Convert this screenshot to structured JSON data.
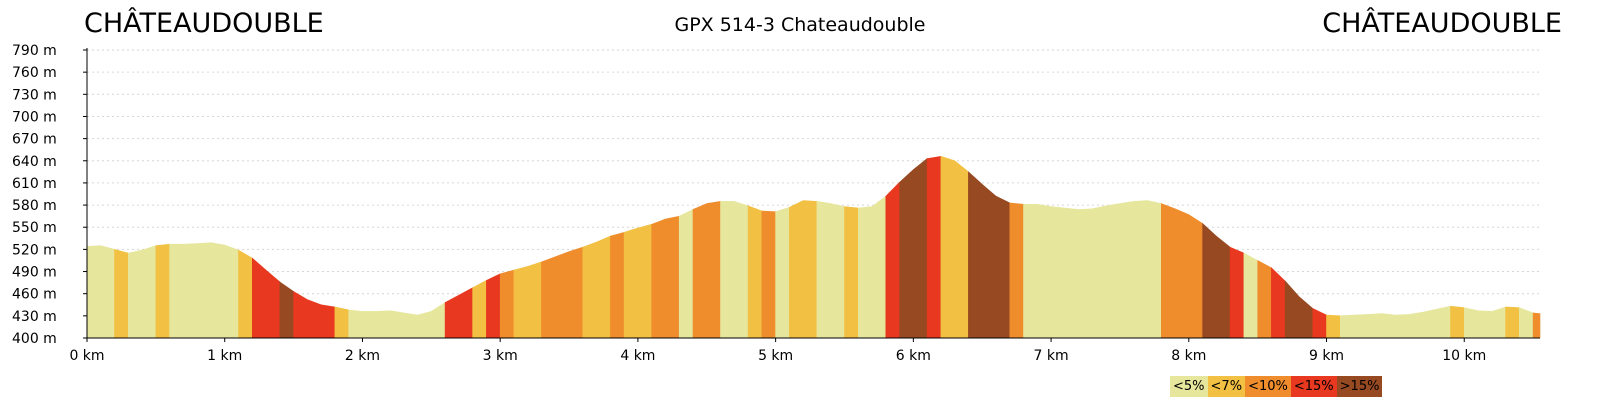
{
  "chart_data": {
    "type": "area",
    "title": "GPX 514-3 Chateaudouble",
    "start_label": "CHÂTEAUDOUBLE",
    "end_label": "CHÂTEAUDOUBLE",
    "xlabel": "",
    "ylabel": "",
    "xlim": [
      0,
      10.55
    ],
    "ylim": [
      400,
      790
    ],
    "x_ticks": [
      {
        "value": 0,
        "label": "0 km"
      },
      {
        "value": 1,
        "label": "1 km"
      },
      {
        "value": 2,
        "label": "2 km"
      },
      {
        "value": 3,
        "label": "3 km"
      },
      {
        "value": 4,
        "label": "4 km"
      },
      {
        "value": 5,
        "label": "5 km"
      },
      {
        "value": 6,
        "label": "6 km"
      },
      {
        "value": 7,
        "label": "7 km"
      },
      {
        "value": 8,
        "label": "8 km"
      },
      {
        "value": 9,
        "label": "9 km"
      },
      {
        "value": 10,
        "label": "10 km"
      }
    ],
    "y_ticks": [
      {
        "value": 400,
        "label": "400 m"
      },
      {
        "value": 430,
        "label": "430 m"
      },
      {
        "value": 460,
        "label": "460 m"
      },
      {
        "value": 490,
        "label": "490 m"
      },
      {
        "value": 520,
        "label": "520 m"
      },
      {
        "value": 550,
        "label": "550 m"
      },
      {
        "value": 580,
        "label": "580 m"
      },
      {
        "value": 610,
        "label": "610 m"
      },
      {
        "value": 640,
        "label": "640 m"
      },
      {
        "value": 670,
        "label": "670 m"
      },
      {
        "value": 700,
        "label": "700 m"
      },
      {
        "value": 730,
        "label": "730 m"
      },
      {
        "value": 760,
        "label": "760 m"
      },
      {
        "value": 790,
        "label": "790 m"
      }
    ],
    "grid": {
      "horizontal": true,
      "vertical": false,
      "style": "dotted"
    },
    "profile": [
      [
        0.0,
        524
      ],
      [
        0.1,
        525
      ],
      [
        0.2,
        520
      ],
      [
        0.3,
        515
      ],
      [
        0.4,
        519
      ],
      [
        0.5,
        525
      ],
      [
        0.6,
        527
      ],
      [
        0.7,
        527
      ],
      [
        0.8,
        528
      ],
      [
        0.9,
        529
      ],
      [
        1.0,
        526
      ],
      [
        1.1,
        519
      ],
      [
        1.2,
        508
      ],
      [
        1.3,
        492
      ],
      [
        1.4,
        476
      ],
      [
        1.5,
        463
      ],
      [
        1.6,
        452
      ],
      [
        1.7,
        445
      ],
      [
        1.8,
        442
      ],
      [
        1.9,
        438
      ],
      [
        2.0,
        436
      ],
      [
        2.1,
        436
      ],
      [
        2.2,
        437
      ],
      [
        2.3,
        434
      ],
      [
        2.4,
        431
      ],
      [
        2.5,
        436
      ],
      [
        2.6,
        448
      ],
      [
        2.7,
        458
      ],
      [
        2.8,
        468
      ],
      [
        2.9,
        478
      ],
      [
        3.0,
        487
      ],
      [
        3.1,
        492
      ],
      [
        3.2,
        497
      ],
      [
        3.3,
        503
      ],
      [
        3.4,
        510
      ],
      [
        3.5,
        517
      ],
      [
        3.6,
        523
      ],
      [
        3.7,
        530
      ],
      [
        3.8,
        538
      ],
      [
        3.9,
        543
      ],
      [
        4.0,
        549
      ],
      [
        4.1,
        554
      ],
      [
        4.2,
        561
      ],
      [
        4.3,
        565
      ],
      [
        4.4,
        574
      ],
      [
        4.5,
        582
      ],
      [
        4.6,
        585
      ],
      [
        4.7,
        585
      ],
      [
        4.8,
        579
      ],
      [
        4.9,
        572
      ],
      [
        5.0,
        571
      ],
      [
        5.1,
        577
      ],
      [
        5.2,
        586
      ],
      [
        5.3,
        585
      ],
      [
        5.4,
        582
      ],
      [
        5.5,
        578
      ],
      [
        5.6,
        576
      ],
      [
        5.7,
        578
      ],
      [
        5.8,
        592
      ],
      [
        5.9,
        611
      ],
      [
        6.0,
        628
      ],
      [
        6.1,
        643
      ],
      [
        6.2,
        646
      ],
      [
        6.3,
        640
      ],
      [
        6.4,
        625
      ],
      [
        6.5,
        608
      ],
      [
        6.6,
        592
      ],
      [
        6.7,
        583
      ],
      [
        6.8,
        581
      ],
      [
        6.9,
        581
      ],
      [
        7.0,
        578
      ],
      [
        7.1,
        576
      ],
      [
        7.2,
        574
      ],
      [
        7.3,
        575
      ],
      [
        7.4,
        579
      ],
      [
        7.5,
        582
      ],
      [
        7.6,
        585
      ],
      [
        7.7,
        586
      ],
      [
        7.8,
        582
      ],
      [
        7.9,
        575
      ],
      [
        8.0,
        567
      ],
      [
        8.1,
        555
      ],
      [
        8.2,
        538
      ],
      [
        8.3,
        523
      ],
      [
        8.4,
        515
      ],
      [
        8.5,
        505
      ],
      [
        8.6,
        495
      ],
      [
        8.7,
        477
      ],
      [
        8.8,
        456
      ],
      [
        8.9,
        440
      ],
      [
        9.0,
        431
      ],
      [
        9.1,
        430
      ],
      [
        9.2,
        431
      ],
      [
        9.3,
        432
      ],
      [
        9.4,
        433
      ],
      [
        9.5,
        431
      ],
      [
        9.6,
        432
      ],
      [
        9.7,
        435
      ],
      [
        9.8,
        439
      ],
      [
        9.9,
        443
      ],
      [
        10.0,
        441
      ],
      [
        10.1,
        437
      ],
      [
        10.2,
        436
      ],
      [
        10.3,
        442
      ],
      [
        10.4,
        441
      ],
      [
        10.5,
        434
      ],
      [
        10.55,
        433
      ]
    ],
    "segments": [
      {
        "from": 0.0,
        "to": 0.2,
        "band": 0
      },
      {
        "from": 0.2,
        "to": 0.3,
        "band": 1
      },
      {
        "from": 0.3,
        "to": 0.5,
        "band": 0
      },
      {
        "from": 0.5,
        "to": 0.6,
        "band": 1
      },
      {
        "from": 0.6,
        "to": 1.1,
        "band": 0
      },
      {
        "from": 1.1,
        "to": 1.2,
        "band": 1
      },
      {
        "from": 1.2,
        "to": 1.4,
        "band": 3
      },
      {
        "from": 1.4,
        "to": 1.5,
        "band": 4
      },
      {
        "from": 1.5,
        "to": 1.8,
        "band": 3
      },
      {
        "from": 1.8,
        "to": 1.9,
        "band": 1
      },
      {
        "from": 1.9,
        "to": 2.6,
        "band": 0
      },
      {
        "from": 2.6,
        "to": 2.8,
        "band": 3
      },
      {
        "from": 2.8,
        "to": 2.9,
        "band": 1
      },
      {
        "from": 2.9,
        "to": 3.0,
        "band": 3
      },
      {
        "from": 3.0,
        "to": 3.1,
        "band": 2
      },
      {
        "from": 3.1,
        "to": 3.3,
        "band": 1
      },
      {
        "from": 3.3,
        "to": 3.6,
        "band": 2
      },
      {
        "from": 3.6,
        "to": 3.8,
        "band": 1
      },
      {
        "from": 3.8,
        "to": 3.9,
        "band": 2
      },
      {
        "from": 3.9,
        "to": 4.1,
        "band": 1
      },
      {
        "from": 4.1,
        "to": 4.3,
        "band": 2
      },
      {
        "from": 4.3,
        "to": 4.4,
        "band": 0
      },
      {
        "from": 4.4,
        "to": 4.6,
        "band": 2
      },
      {
        "from": 4.6,
        "to": 4.8,
        "band": 0
      },
      {
        "from": 4.8,
        "to": 4.9,
        "band": 1
      },
      {
        "from": 4.9,
        "to": 5.0,
        "band": 2
      },
      {
        "from": 5.0,
        "to": 5.1,
        "band": 0
      },
      {
        "from": 5.1,
        "to": 5.3,
        "band": 1
      },
      {
        "from": 5.3,
        "to": 5.5,
        "band": 0
      },
      {
        "from": 5.5,
        "to": 5.6,
        "band": 1
      },
      {
        "from": 5.6,
        "to": 5.8,
        "band": 0
      },
      {
        "from": 5.8,
        "to": 5.9,
        "band": 3
      },
      {
        "from": 5.9,
        "to": 6.1,
        "band": 4
      },
      {
        "from": 6.1,
        "to": 6.2,
        "band": 3
      },
      {
        "from": 6.2,
        "to": 6.4,
        "band": 1
      },
      {
        "from": 6.4,
        "to": 6.7,
        "band": 4
      },
      {
        "from": 6.7,
        "to": 6.8,
        "band": 2
      },
      {
        "from": 6.8,
        "to": 7.8,
        "band": 0
      },
      {
        "from": 7.8,
        "to": 8.1,
        "band": 2
      },
      {
        "from": 8.1,
        "to": 8.3,
        "band": 4
      },
      {
        "from": 8.3,
        "to": 8.4,
        "band": 3
      },
      {
        "from": 8.4,
        "to": 8.5,
        "band": 0
      },
      {
        "from": 8.5,
        "to": 8.6,
        "band": 2
      },
      {
        "from": 8.6,
        "to": 8.7,
        "band": 3
      },
      {
        "from": 8.7,
        "to": 8.9,
        "band": 4
      },
      {
        "from": 8.9,
        "to": 9.0,
        "band": 3
      },
      {
        "from": 9.0,
        "to": 9.1,
        "band": 1
      },
      {
        "from": 9.1,
        "to": 9.9,
        "band": 0
      },
      {
        "from": 9.9,
        "to": 10.0,
        "band": 1
      },
      {
        "from": 10.0,
        "to": 10.3,
        "band": 0
      },
      {
        "from": 10.3,
        "to": 10.4,
        "band": 1
      },
      {
        "from": 10.4,
        "to": 10.5,
        "band": 0
      },
      {
        "from": 10.5,
        "to": 10.55,
        "band": 2
      }
    ],
    "legend": {
      "placement": "bottom-right",
      "items": [
        {
          "label": "<5%",
          "color": "#e6e69c"
        },
        {
          "label": "<7%",
          "color": "#f2c042"
        },
        {
          "label": "<10%",
          "color": "#ef8c2c"
        },
        {
          "label": "<15%",
          "color": "#e8381f"
        },
        {
          "label": ">15%",
          "color": "#974921"
        }
      ]
    }
  }
}
